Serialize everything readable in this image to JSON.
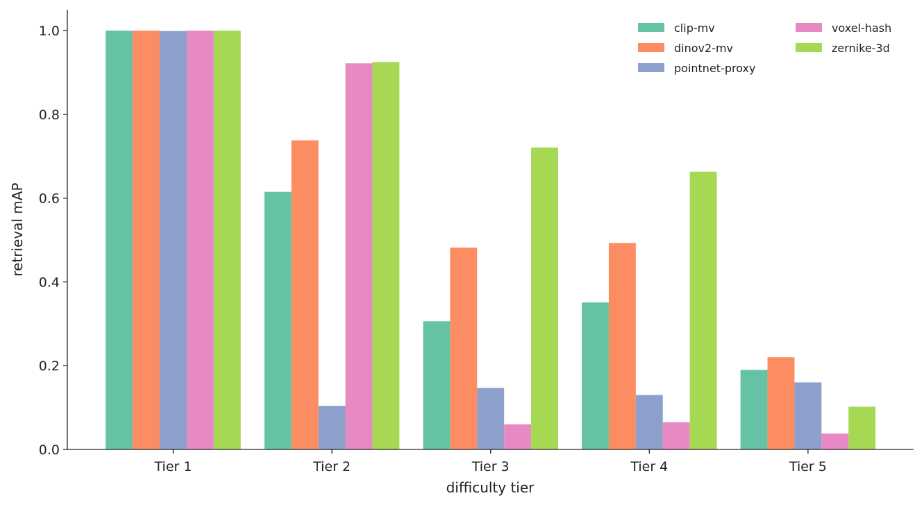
{
  "chart_data": {
    "type": "bar",
    "title": "",
    "xlabel": "difficulty tier",
    "ylabel": "retrieval mAP",
    "categories": [
      "Tier 1",
      "Tier 2",
      "Tier 3",
      "Tier 4",
      "Tier 5"
    ],
    "ylim": [
      0,
      1.05
    ],
    "yticks": [
      "0.0",
      "0.2",
      "0.4",
      "0.6",
      "0.8",
      "1.0"
    ],
    "grid": false,
    "legend_position": "top-right",
    "series": [
      {
        "name": "clip-mv",
        "color": "#66c2a5",
        "values": [
          1.0,
          0.615,
          0.306,
          0.351,
          0.19
        ]
      },
      {
        "name": "dinov2-mv",
        "color": "#fc8d62",
        "values": [
          1.0,
          0.738,
          0.482,
          0.493,
          0.22
        ]
      },
      {
        "name": "pointnet-proxy",
        "color": "#8da0cb",
        "values": [
          0.999,
          0.104,
          0.147,
          0.13,
          0.16
        ]
      },
      {
        "name": "voxel-hash",
        "color": "#e78ac3",
        "values": [
          1.0,
          0.922,
          0.06,
          0.065,
          0.038
        ]
      },
      {
        "name": "zernike-3d",
        "color": "#a6d854",
        "values": [
          1.0,
          0.925,
          0.721,
          0.663,
          0.102
        ]
      }
    ]
  }
}
